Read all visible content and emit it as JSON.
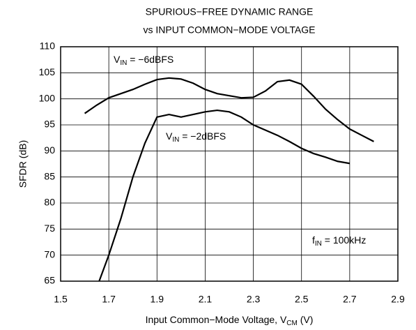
{
  "chart_data": {
    "type": "line",
    "title": [
      "SPURIOUS−FREE DYNAMIC RANGE",
      "vs INPUT COMMON−MODE VOLTAGE"
    ],
    "x_label": {
      "main": "Input Common−Mode Voltage, V",
      "sub": "CM",
      "suffix": " (V)"
    },
    "y_label": "SFDR (dB)",
    "xlim": [
      1.5,
      2.9
    ],
    "xticks": [
      1.5,
      1.7,
      1.9,
      2.1,
      2.3,
      2.5,
      2.7,
      2.9
    ],
    "ylim": [
      65,
      110
    ],
    "yticks": [
      65,
      70,
      75,
      80,
      85,
      90,
      95,
      100,
      105,
      110
    ],
    "grid": true,
    "series": [
      {
        "label": {
          "main": "V",
          "sub": "IN",
          "suffix": " = −6dBFS"
        },
        "color": "#000000",
        "x": [
          1.6,
          1.65,
          1.7,
          1.75,
          1.8,
          1.85,
          1.9,
          1.95,
          2.0,
          2.05,
          2.1,
          2.15,
          2.2,
          2.25,
          2.3,
          2.35,
          2.4,
          2.45,
          2.5,
          2.55,
          2.6,
          2.65,
          2.7,
          2.75,
          2.8
        ],
        "values": [
          97.2,
          98.8,
          100.2,
          101.0,
          101.8,
          102.8,
          103.7,
          104.0,
          103.8,
          103.0,
          101.8,
          101.0,
          100.6,
          100.2,
          100.3,
          101.5,
          103.3,
          103.6,
          102.8,
          100.5,
          98.0,
          96.0,
          94.2,
          93.0,
          91.8
        ]
      },
      {
        "label": {
          "main": "V",
          "sub": "IN",
          "suffix": " = −2dBFS"
        },
        "color": "#000000",
        "x": [
          1.66,
          1.7,
          1.75,
          1.8,
          1.85,
          1.9,
          1.95,
          2.0,
          2.05,
          2.1,
          2.15,
          2.2,
          2.25,
          2.3,
          2.35,
          2.4,
          2.45,
          2.5,
          2.55,
          2.6,
          2.65,
          2.7
        ],
        "values": [
          65,
          70,
          77,
          85,
          91.5,
          96.5,
          97,
          96.5,
          97,
          97.5,
          97.8,
          97.5,
          96.5,
          95,
          94,
          93,
          91.8,
          90.5,
          89.5,
          88.8,
          88,
          87.6
        ]
      }
    ],
    "annotation": {
      "main": "f",
      "sub": "IN",
      "suffix": " = 100kHz"
    }
  }
}
